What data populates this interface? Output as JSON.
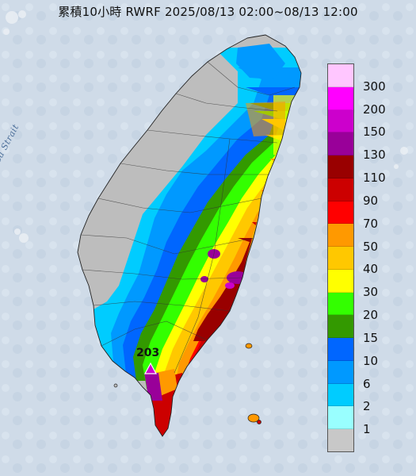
{
  "title": "累積10小時 RWRF 2025/08/13 02:00~08/13 12:00",
  "map_label": "Formosa Strait",
  "max_value": "203",
  "legend": {
    "items": [
      {
        "label": "300",
        "color": "#ffc6ff"
      },
      {
        "label": "200",
        "color": "#ff00ff"
      },
      {
        "label": "150",
        "color": "#cc00cc"
      },
      {
        "label": "130",
        "color": "#990099"
      },
      {
        "label": "110",
        "color": "#990000"
      },
      {
        "label": "90",
        "color": "#cc0000"
      },
      {
        "label": "70",
        "color": "#ff0000"
      },
      {
        "label": "50",
        "color": "#ff9900"
      },
      {
        "label": "40",
        "color": "#ffc800"
      },
      {
        "label": "30",
        "color": "#ffff00"
      },
      {
        "label": "20",
        "color": "#33ff00"
      },
      {
        "label": "15",
        "color": "#339900"
      },
      {
        "label": "10",
        "color": "#0066ff"
      },
      {
        "label": "6",
        "color": "#0099ff"
      },
      {
        "label": "2",
        "color": "#00ccff"
      },
      {
        "label": "1",
        "color": "#99ffff"
      },
      {
        "label": "",
        "color": "#c8c8c8"
      }
    ]
  }
}
